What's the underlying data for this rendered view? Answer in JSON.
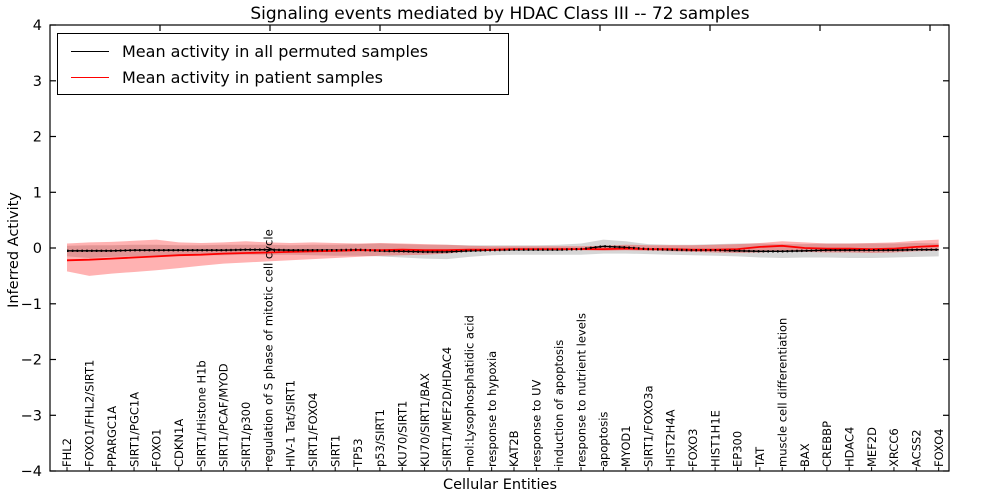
{
  "chart_data": {
    "type": "line",
    "title": "Signaling events mediated by HDAC Class III -- 72 samples",
    "xlabel": "Cellular Entities",
    "ylabel": "Inferred Activity",
    "ylim": [
      -4,
      4
    ],
    "yticks": [
      4,
      3,
      2,
      1,
      0,
      -1,
      -2,
      -3,
      -4
    ],
    "grid": false,
    "legend_position": "upper left",
    "categories": [
      "FHL2",
      "FOXO1/FHL2/SIRT1",
      "PPARGC1A",
      "SIRT1/PGC1A",
      "FOXO1",
      "CDKN1A",
      "SIRT1/Histone H1b",
      "SIRT1/PCAF/MYOD",
      "SIRT1/p300",
      "regulation of S phase of mitotic cell cycle",
      "HIV-1 Tat/SIRT1",
      "SIRT1/FOXO4",
      "SIRT1",
      "TP53",
      "p53/SIRT1",
      "KU70/SIRT1",
      "KU70/SIRT1/BAX",
      "SIRT1/MEF2D/HDAC4",
      "mol:Lysophosphatidic acid",
      "response to hypoxia",
      "KAT2B",
      "response to UV",
      "induction of apoptosis",
      "response to nutrient levels",
      "apoptosis",
      "MYOD1",
      "SIRT1/FOXO3a",
      "HIST2H4A",
      "FOXO3",
      "HIST1H1E",
      "EP300",
      "TAT",
      "muscle cell differentiation",
      "BAX",
      "CREBBP",
      "HDAC4",
      "MEF2D",
      "XRCC6",
      "ACSS2",
      "FOXO4"
    ],
    "series": [
      {
        "name": "Mean activity in all permuted samples",
        "color": "#000000",
        "band_color": "rgba(0,0,0,0.16)",
        "values": [
          -0.05,
          -0.05,
          -0.05,
          -0.04,
          -0.04,
          -0.04,
          -0.04,
          -0.04,
          -0.03,
          -0.03,
          -0.04,
          -0.04,
          -0.04,
          -0.03,
          -0.05,
          -0.06,
          -0.07,
          -0.07,
          -0.05,
          -0.04,
          -0.03,
          -0.03,
          -0.03,
          -0.02,
          0.03,
          0.01,
          -0.02,
          -0.03,
          -0.04,
          -0.04,
          -0.05,
          -0.06,
          -0.06,
          -0.05,
          -0.04,
          -0.04,
          -0.04,
          -0.04,
          -0.03,
          -0.03
        ],
        "band_low": [
          -0.15,
          -0.18,
          -0.16,
          -0.15,
          -0.14,
          -0.14,
          -0.13,
          -0.13,
          -0.12,
          -0.12,
          -0.12,
          -0.13,
          -0.14,
          -0.14,
          -0.15,
          -0.17,
          -0.19,
          -0.2,
          -0.16,
          -0.13,
          -0.12,
          -0.12,
          -0.12,
          -0.12,
          -0.1,
          -0.1,
          -0.11,
          -0.12,
          -0.13,
          -0.14,
          -0.15,
          -0.17,
          -0.18,
          -0.17,
          -0.17,
          -0.18,
          -0.18,
          -0.17,
          -0.16,
          -0.15
        ],
        "band_high": [
          0.04,
          0.05,
          0.05,
          0.06,
          0.06,
          0.05,
          0.05,
          0.06,
          0.06,
          0.06,
          0.05,
          0.06,
          0.06,
          0.07,
          0.08,
          0.07,
          0.06,
          0.06,
          0.05,
          0.05,
          0.05,
          0.05,
          0.06,
          0.08,
          0.15,
          0.12,
          0.07,
          0.06,
          0.06,
          0.07,
          0.08,
          0.08,
          0.07,
          0.07,
          0.08,
          0.08,
          0.08,
          0.08,
          0.09,
          0.08
        ]
      },
      {
        "name": "Mean activity in patient samples",
        "color": "#ff0000",
        "band_color": "rgba(255,0,0,0.30)",
        "values": [
          -0.22,
          -0.21,
          -0.19,
          -0.17,
          -0.15,
          -0.13,
          -0.12,
          -0.1,
          -0.09,
          -0.08,
          -0.07,
          -0.06,
          -0.05,
          -0.04,
          -0.04,
          -0.03,
          -0.04,
          -0.04,
          -0.03,
          -0.03,
          -0.02,
          -0.02,
          -0.02,
          -0.02,
          -0.02,
          -0.01,
          -0.02,
          -0.02,
          -0.03,
          -0.03,
          -0.02,
          0.02,
          0.04,
          0.0,
          -0.01,
          -0.01,
          -0.02,
          -0.01,
          0.02,
          0.04
        ],
        "band_low": [
          -0.42,
          -0.5,
          -0.46,
          -0.43,
          -0.4,
          -0.36,
          -0.32,
          -0.28,
          -0.26,
          -0.24,
          -0.22,
          -0.2,
          -0.18,
          -0.16,
          -0.14,
          -0.13,
          -0.12,
          -0.1,
          -0.06,
          -0.05,
          -0.04,
          -0.04,
          -0.04,
          -0.04,
          -0.05,
          -0.04,
          -0.05,
          -0.06,
          -0.07,
          -0.08,
          -0.09,
          -0.08,
          -0.06,
          -0.07,
          -0.08,
          -0.08,
          -0.09,
          -0.08,
          -0.06,
          -0.05
        ],
        "band_high": [
          0.08,
          0.1,
          0.11,
          0.13,
          0.15,
          0.1,
          0.09,
          0.1,
          0.12,
          0.1,
          0.09,
          0.1,
          0.09,
          0.08,
          0.09,
          0.08,
          0.07,
          0.06,
          0.04,
          0.03,
          0.03,
          0.03,
          0.03,
          0.03,
          0.04,
          0.06,
          0.05,
          0.05,
          0.05,
          0.06,
          0.07,
          0.09,
          0.12,
          0.1,
          0.08,
          0.08,
          0.09,
          0.1,
          0.13,
          0.15
        ]
      }
    ]
  }
}
